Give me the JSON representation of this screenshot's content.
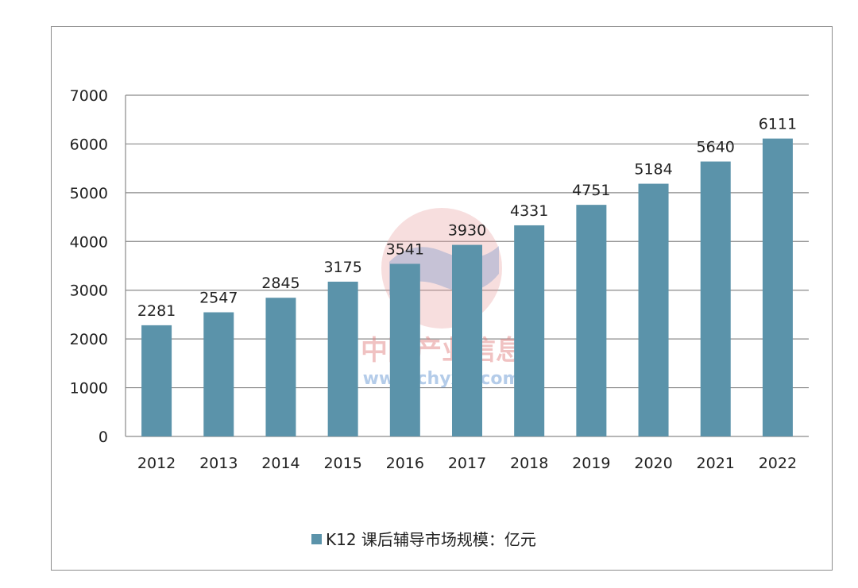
{
  "chart_data": {
    "type": "bar",
    "categories": [
      "2012",
      "2013",
      "2014",
      "2015",
      "2016",
      "2017",
      "2018",
      "2019",
      "2020",
      "2021",
      "2022"
    ],
    "series": [
      {
        "name": "K12 课后辅导市场规模：亿元",
        "values": [
          2281,
          2547,
          2845,
          3175,
          3541,
          3930,
          4331,
          4751,
          5184,
          5640,
          6111
        ]
      }
    ],
    "ylim": [
      0,
      7000
    ],
    "yticks": [
      0,
      1000,
      2000,
      3000,
      4000,
      5000,
      6000,
      7000
    ],
    "grid": true,
    "legend_position": "bottom",
    "bar_color": "#5b93aa"
  },
  "watermark": {
    "text_cn": "中国产业信息",
    "text_url": "www.chyxx.com"
  }
}
